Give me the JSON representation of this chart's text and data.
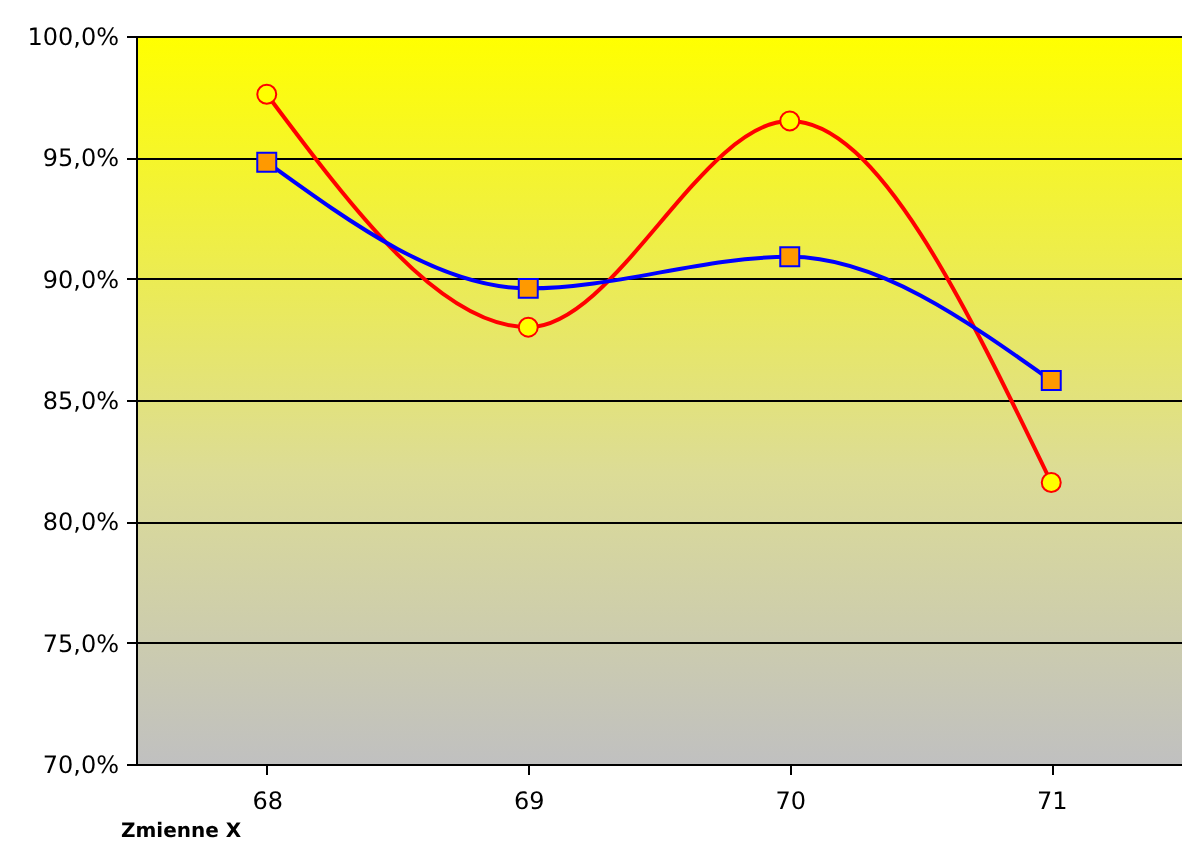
{
  "chart_data": {
    "type": "line",
    "xlabel": "Zmienne X",
    "categories": [
      "68",
      "69",
      "70",
      "71"
    ],
    "series": [
      {
        "color": "#ff0000",
        "marker": "circle",
        "values": [
          97.6,
          88.0,
          96.5,
          81.6
        ]
      },
      {
        "color": "#0000ff",
        "marker": "square",
        "values": [
          94.8,
          89.6,
          90.9,
          85.8
        ]
      }
    ],
    "ylim": [
      70,
      100
    ],
    "yticks": [
      {
        "value": 70,
        "label": "70,0%"
      },
      {
        "value": 75,
        "label": "75,0%"
      },
      {
        "value": 80,
        "label": "80,0%"
      },
      {
        "value": 85,
        "label": "85,0%"
      },
      {
        "value": 90,
        "label": "90,0%"
      },
      {
        "value": 95,
        "label": "95,0%"
      },
      {
        "value": 100,
        "label": "100,0%"
      }
    ],
    "grid": "y"
  }
}
